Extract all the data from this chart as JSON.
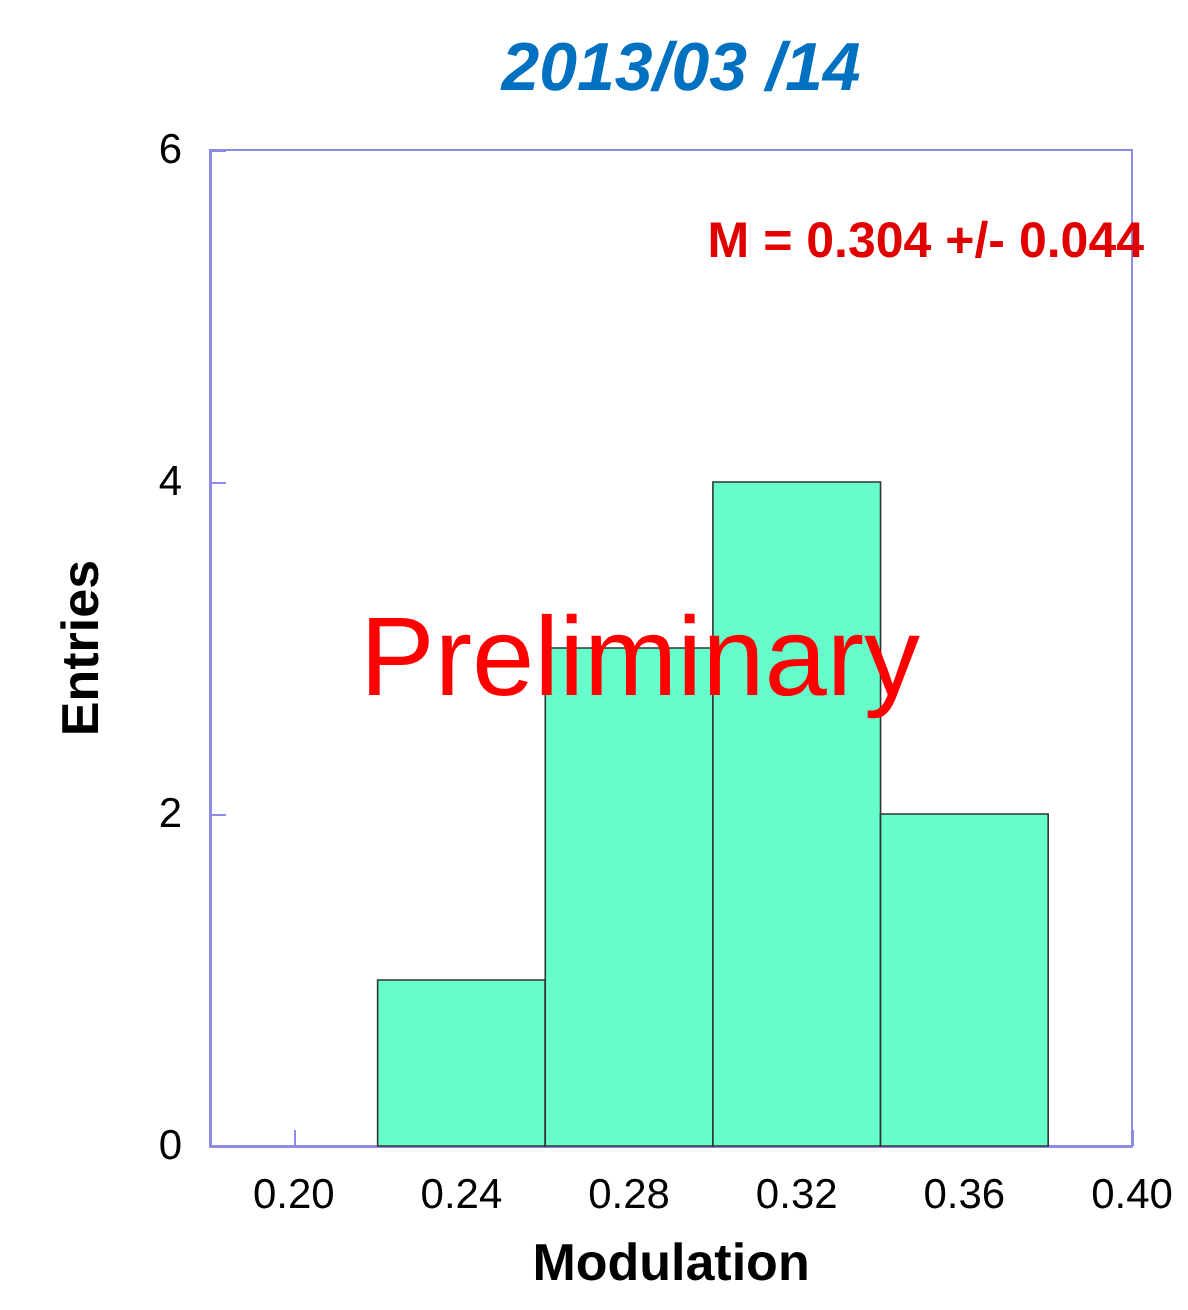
{
  "chart_data": {
    "type": "histogram",
    "title": "2013/03 /14",
    "xlabel": "Modulation",
    "ylabel": "Entries",
    "bins": [
      0.22,
      0.26,
      0.3,
      0.34,
      0.38
    ],
    "values": [
      1,
      3,
      4,
      2
    ],
    "color": "#66ffcc",
    "xlim": [
      0.18,
      0.4
    ],
    "xticks": [
      {
        "value": 0.2,
        "label": "0.20"
      },
      {
        "value": 0.24,
        "label": "0.24"
      },
      {
        "value": 0.28,
        "label": "0.28"
      },
      {
        "value": 0.32,
        "label": "0.32"
      },
      {
        "value": 0.36,
        "label": "0.36"
      },
      {
        "value": 0.4,
        "label": "0.40"
      }
    ],
    "ylim": [
      0,
      6
    ],
    "yticks": [
      0,
      2,
      4,
      6
    ],
    "grid": false,
    "annotations": [
      "M = 0.304 +/- 0.044",
      "Preliminary"
    ]
  }
}
